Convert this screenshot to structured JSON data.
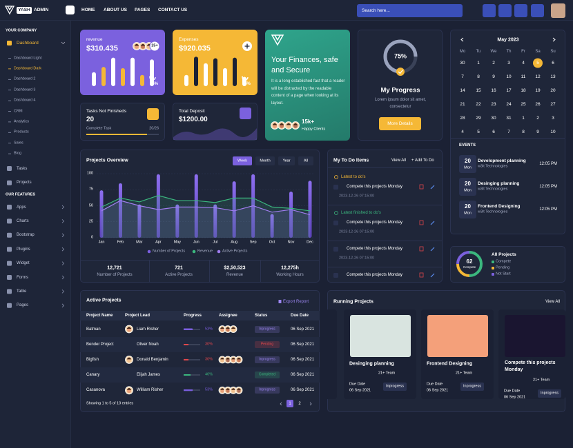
{
  "header": {
    "logo_text": "YASH",
    "logo_sub": "ADMIN",
    "nav": [
      "HOME",
      "ABOUT US",
      "PAGES",
      "CONTACT US"
    ],
    "search_placeholder": "Search here..."
  },
  "sidebar": {
    "section1": "YOUR COMPANY",
    "dashboard": "Dashboard",
    "sub_items": [
      "Dashboard Light",
      "Dashboard Dark",
      "Dashboard 2",
      "Dashboard 3",
      "Dashboard 4",
      "CRM",
      "Analytics",
      "Products",
      "Sales",
      "Blog"
    ],
    "items1": [
      "Tasks",
      "Projects"
    ],
    "section2": "OUR FEATURES",
    "items2": [
      "Apps",
      "Charts",
      "Bootstrap",
      "Plugins",
      "Widget",
      "Forms",
      "Table",
      "Pages"
    ]
  },
  "revenue_card": {
    "label": "revenue",
    "amount": "$310.435",
    "badge": "25+",
    "percent": "45%",
    "bars": [
      45,
      62,
      92,
      58,
      92,
      36,
      86
    ]
  },
  "expenses_card": {
    "label": "Expenses",
    "amount": "$920.035",
    "percent": "45%",
    "bars": [
      36,
      95,
      74,
      90,
      58,
      92,
      30
    ]
  },
  "finance_card": {
    "title": "Your Finances, safe and Secure",
    "text": "It is a long established fact that a reader will be distracted by the readable content of a page when looking at its layout.",
    "count": "15k+",
    "count_label": "Happy Clients"
  },
  "my_progress": {
    "percent": {
      "value": 75,
      "label": "75%"
    },
    "title": "My Progress",
    "text": "Lorem ipsum dolor sit amet, consectetur",
    "button": "More Details"
  },
  "tasks_card": {
    "label": "Tasks Not Finisheds",
    "value": "20",
    "sub": "Complete Task",
    "ratio": "20/26"
  },
  "deposit_card": {
    "label": "Total Deposit",
    "value": "$1200.00"
  },
  "calendar": {
    "month": "May 2023",
    "weekdays": [
      "Mo",
      "Tu",
      "We",
      "Th",
      "Fr",
      "Sa",
      "Su"
    ],
    "weeks": [
      [
        30,
        1,
        2,
        3,
        4,
        5,
        6
      ],
      [
        7,
        8,
        9,
        10,
        11,
        12,
        13
      ],
      [
        14,
        15,
        16,
        17,
        18,
        19,
        20
      ],
      [
        21,
        22,
        23,
        24,
        25,
        26,
        27
      ],
      [
        28,
        29,
        30,
        31,
        1,
        2,
        3
      ],
      [
        4,
        5,
        6,
        7,
        8,
        9,
        10
      ]
    ],
    "selected": [
      0,
      5
    ]
  },
  "events": {
    "title": "EVENTS",
    "items": [
      {
        "day": "20",
        "weekday": "Mon",
        "title": "Development planning",
        "company": "w3it Technologies",
        "time": "12:05 PM"
      },
      {
        "day": "20",
        "weekday": "Mon",
        "title": "Desinging planning",
        "company": "w3it Technologies",
        "time": "12:05 PM"
      },
      {
        "day": "20",
        "weekday": "Mon",
        "title": "Frontend Designing",
        "company": "w3it Technologies",
        "time": "12:05 PM"
      }
    ]
  },
  "projects_overview": {
    "title": "Projects Overview",
    "tabs": [
      "Week",
      "Month",
      "Year",
      "All"
    ],
    "categories": [
      "Jan",
      "Feb",
      "Mar",
      "Apr",
      "May",
      "Jun",
      "Jul",
      "Aug",
      "Sep",
      "Oct",
      "Nov",
      "Dec"
    ],
    "series": [
      {
        "name": "Number of Projects",
        "color": "#7b5fe0",
        "values": [
          74,
          85,
          52,
          99,
          52,
          99,
          52,
          88,
          99,
          37,
          72,
          89
        ]
      },
      {
        "name": "Revenue",
        "color": "#3bb77e",
        "values": [
          48,
          62,
          56,
          66,
          58,
          58,
          55,
          62,
          62,
          48,
          46,
          42
        ]
      },
      {
        "name": "Active Projects",
        "color": "#a07df0",
        "values": [
          42,
          58,
          50,
          44,
          48,
          48,
          47,
          42,
          50,
          40,
          44,
          36
        ]
      }
    ],
    "ylim": [
      0,
      100
    ],
    "yticks": [
      0,
      25,
      50,
      75,
      100
    ],
    "stats": [
      {
        "value": "12,721",
        "label": "Number of Projects"
      },
      {
        "value": "721",
        "label": "Active Projects"
      },
      {
        "value": "$2,50,523",
        "label": "Revenue"
      },
      {
        "value": "12,275h",
        "label": "Working Hours"
      }
    ]
  },
  "todo": {
    "title": "My To Do Items",
    "view_all": "View All",
    "add": "+ Add To Do",
    "groups": [
      {
        "label": "Latest to do's",
        "items": [
          {
            "text": "Compete this projects Monday",
            "date": "2023-12-26 07:15:00"
          }
        ]
      },
      {
        "label": "Latest finished to do's",
        "items": [
          {
            "text": "Compete this projects Monday",
            "date": "2023-12-26 07:15:00"
          },
          {
            "text": "Compete this projects Monday",
            "date": "2023-12-26 07:15:00"
          },
          {
            "text": "Compete this projects Monday"
          }
        ]
      }
    ]
  },
  "all_projects": {
    "title": "All Projects",
    "center_value": "62",
    "center_label": "Compete",
    "legend": [
      "Compete",
      "Pending",
      "Not Start"
    ]
  },
  "active_projects": {
    "title": "Active Projects",
    "export": "Export Report",
    "columns": [
      "Project Name",
      "Project Lead",
      "Progress",
      "Assignee",
      "Status",
      "Due Date"
    ],
    "rows": [
      {
        "name": "Batman",
        "lead": "Liam Risher",
        "progress": {
          "value": 53,
          "label": "53%"
        },
        "color": "#7b5fe0",
        "status": "Inprogress",
        "due": "06 Sep 2021"
      },
      {
        "name": "Bender Project",
        "lead": "Oliver Noah",
        "progress": {
          "value": 30,
          "label": "30%"
        },
        "color": "#e0474c",
        "status": "Pending",
        "due": "06 Sep 2021"
      },
      {
        "name": "Bigfish",
        "lead": "Donald Benjamin",
        "progress": {
          "value": 30,
          "label": "30%"
        },
        "color": "#e0474c",
        "status": "Inprogress",
        "due": "06 Sep 2021"
      },
      {
        "name": "Canary",
        "lead": "Elijah James",
        "progress": {
          "value": 40,
          "label": "40%"
        },
        "color": "#3bb77e",
        "status": "Completed",
        "due": "06 Sep 2021"
      },
      {
        "name": "Casanova",
        "lead": "William Risher",
        "progress": {
          "value": 53,
          "label": "53%"
        },
        "color": "#7b5fe0",
        "status": "Inprogress",
        "due": "06 Sep 2021"
      }
    ],
    "footer": "Showing 1 to 5 of 10 entries",
    "pages": [
      "1",
      "2"
    ]
  },
  "running_projects": {
    "title": "Running Projects",
    "view_all": "View All",
    "cards": [
      {
        "title": "Desinging planning",
        "team": "21+ Team",
        "due_label": "Due Date",
        "due": "06 Sep 2021",
        "status": "Inprogress"
      },
      {
        "title": "Frontend Designing",
        "team": "21+ Team",
        "due_label": "Due Date",
        "due": "06 Sep 2021",
        "status": "Inprogress"
      },
      {
        "title": "Compete this projects Monday",
        "team": "21+ Team",
        "due_label": "Due Date",
        "due": "06 Sep 2021",
        "status": "Inprogress"
      }
    ]
  }
}
